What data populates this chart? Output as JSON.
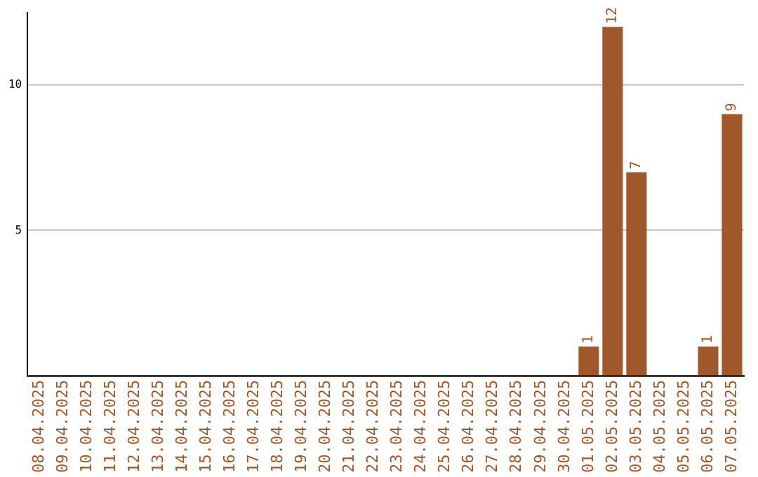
{
  "chart_data": {
    "type": "bar",
    "categories": [
      "08.04.2025",
      "09.04.2025",
      "10.04.2025",
      "11.04.2025",
      "12.04.2025",
      "13.04.2025",
      "14.04.2025",
      "15.04.2025",
      "16.04.2025",
      "17.04.2025",
      "18.04.2025",
      "19.04.2025",
      "20.04.2025",
      "21.04.2025",
      "22.04.2025",
      "23.04.2025",
      "24.04.2025",
      "25.04.2025",
      "26.04.2025",
      "27.04.2025",
      "28.04.2025",
      "29.04.2025",
      "30.04.2025",
      "01.05.2025",
      "02.05.2025",
      "03.05.2025",
      "04.05.2025",
      "05.05.2025",
      "06.05.2025",
      "07.05.2025"
    ],
    "values": [
      0,
      0,
      0,
      0,
      0,
      0,
      0,
      0,
      0,
      0,
      0,
      0,
      0,
      0,
      0,
      0,
      0,
      0,
      0,
      0,
      0,
      0,
      0,
      1,
      12,
      7,
      0,
      0,
      1,
      9
    ],
    "value_labels": [
      null,
      null,
      null,
      null,
      null,
      null,
      null,
      null,
      null,
      null,
      null,
      null,
      null,
      null,
      null,
      null,
      null,
      null,
      null,
      null,
      null,
      null,
      null,
      "1",
      "12",
      "7",
      null,
      null,
      "1",
      "9"
    ],
    "color": "#a0572a",
    "ylim": [
      0,
      12.5
    ],
    "yticks": [
      5,
      10
    ],
    "grid": "y"
  }
}
